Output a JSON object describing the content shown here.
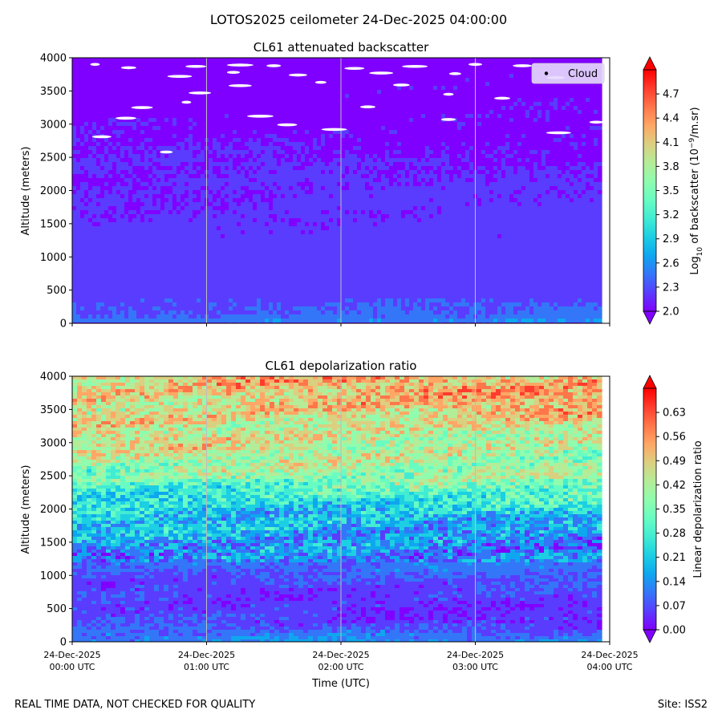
{
  "figure": {
    "suptitle": "LOTOS2025 ceilometer 24-Dec-2025 04:00:00",
    "footer_left": "REAL TIME DATA, NOT CHECKED FOR QUALITY",
    "footer_right": "Site: ISS2"
  },
  "colors": {
    "colormap": [
      "#8000ff",
      "#5a3cfe",
      "#3476f8",
      "#0ea7ef",
      "#1ccfe3",
      "#42ecd3",
      "#68fcc2",
      "#8ffcae",
      "#b5ec98",
      "#dbcf80",
      "#ffa766",
      "#ff764a",
      "#ff3c2d",
      "#ff0000"
    ],
    "gridline": "#bdbdbd",
    "cloud_marker": "#ffffff",
    "legend_bg": "#e6dafc"
  },
  "chart_data": [
    {
      "type": "heatmap",
      "title": "CL61 attenuated backscatter",
      "ylabel": "Altitude (meters)",
      "ylim": [
        0,
        4000
      ],
      "yticks": [
        "0",
        "500",
        "1000",
        "1500",
        "2000",
        "2500",
        "3000",
        "3500",
        "4000"
      ],
      "xlim": [
        "24-Dec-2025 00:00 UTC",
        "24-Dec-2025 04:00 UTC"
      ],
      "colorbar": {
        "label_prefix": "Log",
        "label_sub": "10",
        "label_mid": " of backscatter (10",
        "label_sup": "−9",
        "label_suffix": "/m.sr)",
        "range": [
          2.0,
          5.0
        ],
        "ticks": [
          "2.0",
          "2.3",
          "2.6",
          "2.9",
          "3.2",
          "3.5",
          "3.8",
          "4.1",
          "4.4",
          "4.7"
        ],
        "tick_values": [
          2.0,
          2.3,
          2.6,
          2.9,
          3.2,
          3.5,
          3.8,
          4.1,
          4.4,
          4.7
        ]
      },
      "legend": {
        "label": "Cloud",
        "position": "upper right"
      },
      "profile": [
        {
          "altitude": 0,
          "value": 2.6
        },
        {
          "altitude": 100,
          "value": 2.4
        },
        {
          "altitude": 400,
          "value": 2.25
        },
        {
          "altitude": 1500,
          "value": 2.15
        },
        {
          "altitude": 4000,
          "value": 2.05
        }
      ],
      "clouds": [
        {
          "t": 0.17,
          "altitude": 3900
        },
        {
          "t": 0.42,
          "altitude": 3850
        },
        {
          "t": 0.92,
          "altitude": 3870
        },
        {
          "t": 1.25,
          "altitude": 3890
        },
        {
          "t": 1.5,
          "altitude": 3880
        },
        {
          "t": 2.1,
          "altitude": 3840
        },
        {
          "t": 2.55,
          "altitude": 3870
        },
        {
          "t": 3.0,
          "altitude": 3900
        },
        {
          "t": 3.35,
          "altitude": 3880
        },
        {
          "t": 0.8,
          "altitude": 3720
        },
        {
          "t": 1.2,
          "altitude": 3780
        },
        {
          "t": 1.68,
          "altitude": 3740
        },
        {
          "t": 2.3,
          "altitude": 3770
        },
        {
          "t": 2.85,
          "altitude": 3760
        },
        {
          "t": 3.6,
          "altitude": 3700
        },
        {
          "t": 1.25,
          "altitude": 3580
        },
        {
          "t": 1.85,
          "altitude": 3630
        },
        {
          "t": 2.45,
          "altitude": 3590
        },
        {
          "t": 0.95,
          "altitude": 3470
        },
        {
          "t": 2.8,
          "altitude": 3450
        },
        {
          "t": 3.2,
          "altitude": 3390
        },
        {
          "t": 0.52,
          "altitude": 3250
        },
        {
          "t": 0.85,
          "altitude": 3330
        },
        {
          "t": 2.2,
          "altitude": 3260
        },
        {
          "t": 0.4,
          "altitude": 3090
        },
        {
          "t": 1.4,
          "altitude": 3120
        },
        {
          "t": 2.8,
          "altitude": 3070
        },
        {
          "t": 1.6,
          "altitude": 2990
        },
        {
          "t": 1.95,
          "altitude": 2920
        },
        {
          "t": 3.9,
          "altitude": 3030
        },
        {
          "t": 0.22,
          "altitude": 2810
        },
        {
          "t": 3.62,
          "altitude": 2870
        },
        {
          "t": 0.7,
          "altitude": 2580
        }
      ]
    },
    {
      "type": "heatmap",
      "title": "CL61 depolarization ratio",
      "ylabel": "Altitude (meters)",
      "xlabel": "Time (UTC)",
      "ylim": [
        0,
        4000
      ],
      "yticks": [
        "0",
        "500",
        "1000",
        "1500",
        "2000",
        "2500",
        "3000",
        "3500",
        "4000"
      ],
      "xticks": [
        {
          "date": "24-Dec-2025",
          "time": "00:00 UTC"
        },
        {
          "date": "24-Dec-2025",
          "time": "01:00 UTC"
        },
        {
          "date": "24-Dec-2025",
          "time": "02:00 UTC"
        },
        {
          "date": "24-Dec-2025",
          "time": "03:00 UTC"
        },
        {
          "date": "24-Dec-2025",
          "time": "04:00 UTC"
        }
      ],
      "colorbar": {
        "label": "Linear depolarization ratio",
        "range": [
          0.0,
          0.7
        ],
        "ticks": [
          "0.00",
          "0.07",
          "0.14",
          "0.21",
          "0.28",
          "0.35",
          "0.42",
          "0.49",
          "0.56",
          "0.63"
        ],
        "tick_values": [
          0.0,
          0.07,
          0.14,
          0.21,
          0.28,
          0.35,
          0.42,
          0.49,
          0.56,
          0.63
        ]
      },
      "profile": [
        {
          "altitude": 0,
          "value": 0.12
        },
        {
          "altitude": 300,
          "value": 0.05
        },
        {
          "altitude": 800,
          "value": 0.06
        },
        {
          "altitude": 1500,
          "value": 0.13
        },
        {
          "altitude": 2000,
          "value": 0.24
        },
        {
          "altitude": 2500,
          "value": 0.36
        },
        {
          "altitude": 3000,
          "value": 0.44
        },
        {
          "altitude": 3500,
          "value": 0.5
        },
        {
          "altitude": 4000,
          "value": 0.5
        }
      ]
    }
  ]
}
